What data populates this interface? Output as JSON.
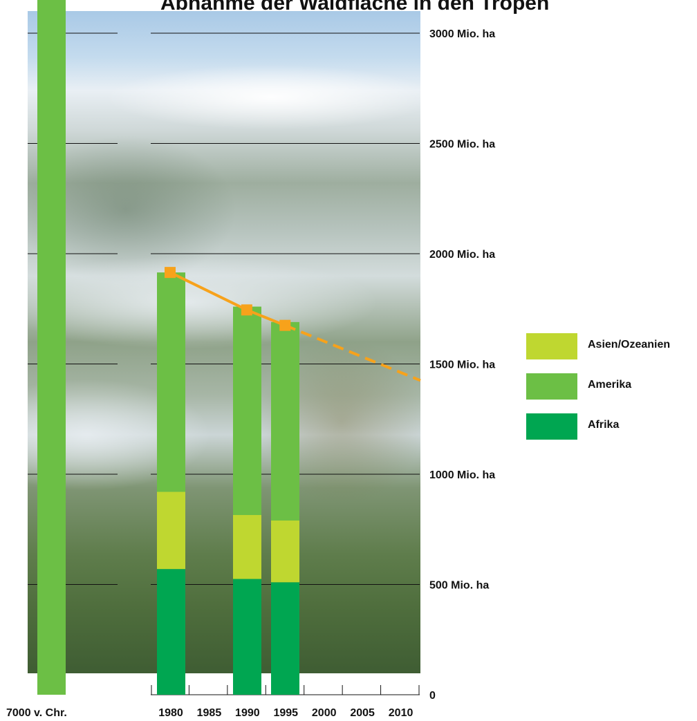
{
  "chart_data": {
    "type": "bar",
    "title": "Abnahme der Waldfläche in den Tropen",
    "categories": [
      "7000 v. Chr.",
      "1980",
      "1990",
      "1995"
    ],
    "series": [
      {
        "name": "Afrika",
        "color": "#00a651",
        "values": [
          null,
          570,
          525,
          510
        ]
      },
      {
        "name": "Asien/Ozeanien",
        "color": "#bfd730",
        "values": [
          null,
          350,
          290,
          280
        ]
      },
      {
        "name": "Amerika",
        "color": "#6cbf45",
        "values": [
          null,
          995,
          945,
          900
        ]
      }
    ],
    "total_7000_bc": 3150,
    "trend_line": {
      "color": "#f7a21b",
      "points": [
        [
          1980,
          1915
        ],
        [
          1990,
          1745
        ],
        [
          1995,
          1675
        ]
      ],
      "projection_to": [
        2012,
        1425
      ]
    },
    "y_ticks": [
      0,
      500,
      1000,
      1500,
      2000,
      2500,
      3000
    ],
    "y_tick_labels": [
      "0",
      "500 Mio. ha",
      "1000 Mio. ha",
      "1500 Mio. ha",
      "2000 Mio. ha",
      "2500 Mio. ha",
      "3000 Mio. ha"
    ],
    "x_ticks": [
      1980,
      1985,
      1990,
      1995,
      2000,
      2005,
      2010
    ],
    "x_tick_labels": [
      "1980",
      "1985",
      "1990",
      "1995",
      "2000",
      "2005",
      "2010"
    ],
    "x_first_label": "7000 v. Chr.",
    "ylim": [
      0,
      3000
    ],
    "legend_position": "right"
  },
  "legend": [
    {
      "label": "Asien/Ozeanien",
      "color": "#bfd730"
    },
    {
      "label": "Amerika",
      "color": "#6cbf45"
    },
    {
      "label": "Afrika",
      "color": "#00a651"
    }
  ]
}
